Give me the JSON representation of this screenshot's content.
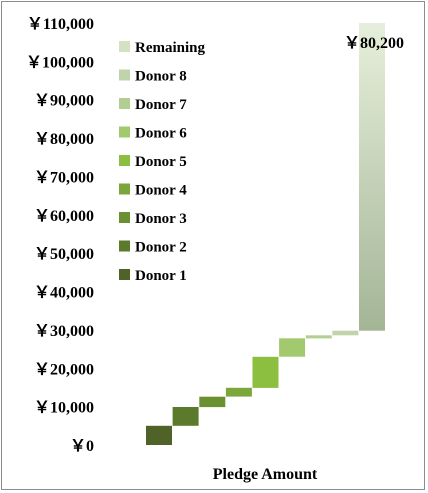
{
  "chart_data": {
    "type": "bar",
    "subtype": "waterfall",
    "title": "",
    "xlabel": "Pledge Amount",
    "ylabel": "",
    "ylim": [
      0,
      110000
    ],
    "ytick_labels": [
      "￥0",
      "￥10,000",
      "￥20,000",
      "￥30,000",
      "￥40,000",
      "￥50,000",
      "￥60,000",
      "￥70,000",
      "￥80,000",
      "￥90,000",
      "￥100,000",
      "￥110,000"
    ],
    "grid": false,
    "legend_position": "upper-left",
    "series": [
      {
        "name": "Donor 1",
        "start": 0,
        "end": 5000,
        "color": "#4f6228"
      },
      {
        "name": "Donor 2",
        "start": 5000,
        "end": 9900,
        "color": "#5c7a2c"
      },
      {
        "name": "Donor 3",
        "start": 9900,
        "end": 12600,
        "color": "#6a9032"
      },
      {
        "name": "Donor 4",
        "start": 12600,
        "end": 14900,
        "color": "#7aa63a"
      },
      {
        "name": "Donor 5",
        "start": 14900,
        "end": 23000,
        "color": "#8cbf3f"
      },
      {
        "name": "Donor 6",
        "start": 23000,
        "end": 27800,
        "color": "#a2c96e"
      },
      {
        "name": "Donor 7",
        "start": 27800,
        "end": 28600,
        "color": "#b2cf92"
      },
      {
        "name": "Donor 8",
        "start": 28600,
        "end": 29800,
        "color": "#c0d3ab"
      },
      {
        "name": "Remaining",
        "start": 29800,
        "end": 110000,
        "color": "#d4e2c4"
      }
    ],
    "data_label": "￥80,200"
  },
  "colors": {
    "remaining_top": "#e6efdb",
    "remaining_bottom": "#a4b596",
    "frame": "#8c8c8c"
  }
}
